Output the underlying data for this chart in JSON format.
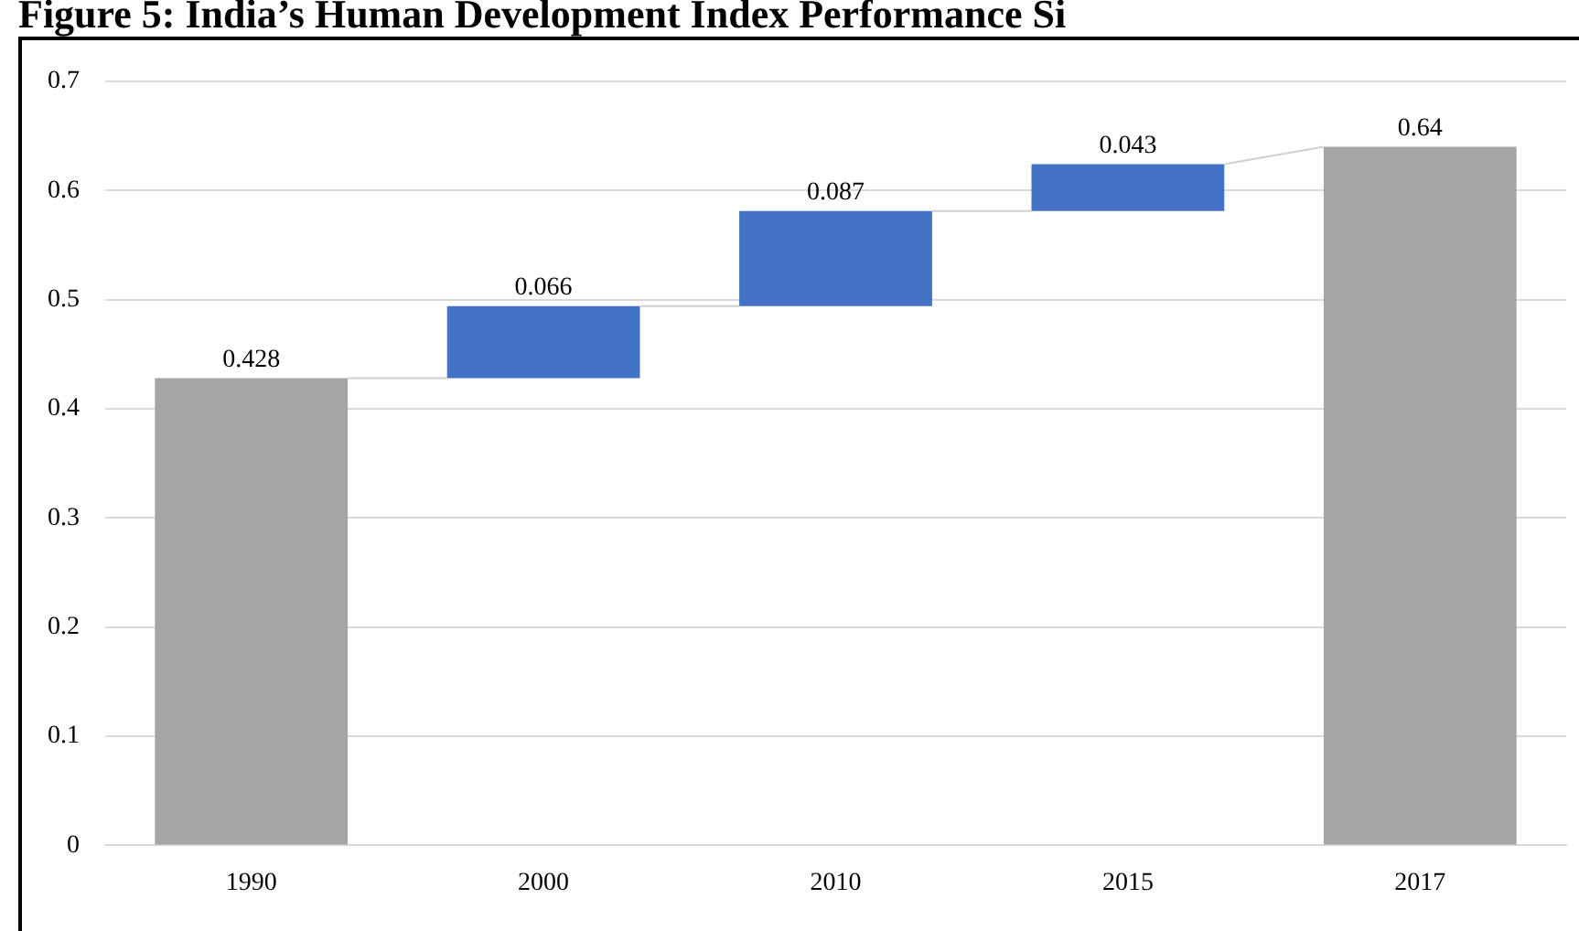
{
  "chart_data": {
    "type": "bar",
    "title": "Figure 5: India’s Human Development Index Performance Si",
    "categories": [
      "1990",
      "2000",
      "2010",
      "2015",
      "2017"
    ],
    "values": [
      0.428,
      0.066,
      0.087,
      0.043,
      0.64
    ],
    "base": [
      0,
      0.428,
      0.494,
      0.581,
      0
    ],
    "colors": [
      "#a5a5a5",
      "#4472c4",
      "#4472c4",
      "#4472c4",
      "#a5a5a5"
    ],
    "ylim": [
      0,
      0.7
    ],
    "yticks": [
      0,
      0.1,
      0.2,
      0.3,
      0.4,
      0.5,
      0.6,
      0.7
    ],
    "grid": "y",
    "data_labels": true,
    "legend": false
  }
}
